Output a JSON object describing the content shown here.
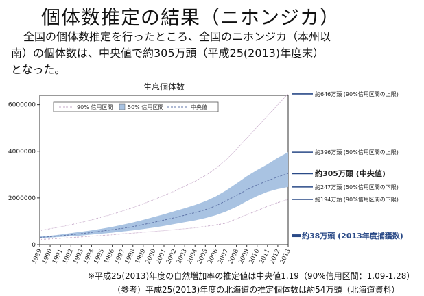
{
  "page": {
    "title": "個体数推定の結果（ニホンジカ）",
    "intro_line1": "全国の個体数推定を行ったところ、全国のニホンジカ（本州以",
    "intro_line2": "南）の個体数は、中央値で約305万頭（平成25(2013)年度末）",
    "intro_line3": "となった。",
    "footnote1": "※平成25(2013)年度の自然増加率の推定値は中央値1.19（90%信用区間：1.09-1.28）",
    "footnote2": "（参考）平成25(2013)年度の北海道の推定個体数は約54万頭（北海道資料）"
  },
  "colors": {
    "band50": "#a9c3e2",
    "line90": "#c6a9c9",
    "median": "#5f74a8",
    "accent": "#2a4a87"
  },
  "chart_data": {
    "type": "area",
    "title": "生息個体数",
    "x": [
      1989,
      1990,
      1991,
      1992,
      1993,
      1994,
      1995,
      1996,
      1997,
      1998,
      1999,
      2000,
      2001,
      2002,
      2003,
      2004,
      2005,
      2006,
      2007,
      2008,
      2009,
      2010,
      2011,
      2012,
      2013
    ],
    "xtick_labels": [
      "1989",
      "1990",
      "1991",
      "1992",
      "1993",
      "1994",
      "1995",
      "1996",
      "1997",
      "1998",
      "1999",
      "2000",
      "2001",
      "2002",
      "2003",
      "2004",
      "2005",
      "2006",
      "2007",
      "2008",
      "2009",
      "2010",
      "2011",
      "2012",
      "2013"
    ],
    "yticks": [
      0,
      2000000,
      4000000,
      6000000
    ],
    "ytick_labels": [
      "0",
      "2000000",
      "4000000",
      "6000000"
    ],
    "ylim": [
      0,
      6400000
    ],
    "xlim": [
      1989,
      2013
    ],
    "legend": [
      "90% 信用区間",
      "50% 信用区間",
      "中央値"
    ],
    "series": [
      {
        "name": "90% 信用区間",
        "values": [
          600000,
          680000,
          760000,
          850000,
          950000,
          1060000,
          1180000,
          1300000,
          1440000,
          1590000,
          1750000,
          1920000,
          2100000,
          2290000,
          2500000,
          2720000,
          2960000,
          3260000,
          3640000,
          4080000,
          4560000,
          5040000,
          5520000,
          6000000,
          6460000
        ]
      },
      {
        "name": "90% 信用区間",
        "values": [
          220000,
          240000,
          270000,
          300000,
          330000,
          360000,
          390000,
          420000,
          460000,
          490000,
          530000,
          560000,
          600000,
          640000,
          680000,
          720000,
          780000,
          840000,
          920000,
          1100000,
          1280000,
          1460000,
          1640000,
          1800000,
          1940000
        ]
      },
      {
        "name": "50% 信用区間",
        "values": [
          340000,
          380000,
          430000,
          490000,
          550000,
          610000,
          680000,
          760000,
          850000,
          950000,
          1060000,
          1180000,
          1300000,
          1430000,
          1560000,
          1700000,
          1860000,
          2060000,
          2320000,
          2620000,
          2930000,
          3200000,
          3440000,
          3720000,
          3960000
        ]
      },
      {
        "name": "50% 信用区間",
        "values": [
          280000,
          300000,
          330000,
          360000,
          390000,
          430000,
          470000,
          510000,
          560000,
          610000,
          670000,
          730000,
          800000,
          880000,
          960000,
          1040000,
          1140000,
          1260000,
          1420000,
          1620000,
          1860000,
          2080000,
          2260000,
          2380000,
          2470000
        ]
      },
      {
        "name": "中央値",
        "values": [
          310000,
          340000,
          380000,
          420000,
          470000,
          520000,
          580000,
          640000,
          700000,
          770000,
          860000,
          950000,
          1050000,
          1150000,
          1260000,
          1370000,
          1500000,
          1660000,
          1880000,
          2100000,
          2350000,
          2560000,
          2740000,
          2900000,
          3050000
        ]
      }
    ],
    "annotations": [
      {
        "text": "約646万頭 (90%信用区間の上限)",
        "value": 6460000,
        "emphasis": false
      },
      {
        "text": "約396万頭 (50%信用区間の上限)",
        "value": 3960000,
        "emphasis": false
      },
      {
        "text": "約305万頭 (中央値)",
        "value": 3050000,
        "emphasis": true
      },
      {
        "text": "約247万頭 (50%信用区間の下限)",
        "value": 2470000,
        "emphasis": false
      },
      {
        "text": "約194万頭 (90%信用区間の下限)",
        "value": 1940000,
        "emphasis": false
      },
      {
        "text": "約38万頭 (2013年度捕獲数)",
        "value": 380000,
        "emphasis": true
      }
    ],
    "grid": false
  }
}
